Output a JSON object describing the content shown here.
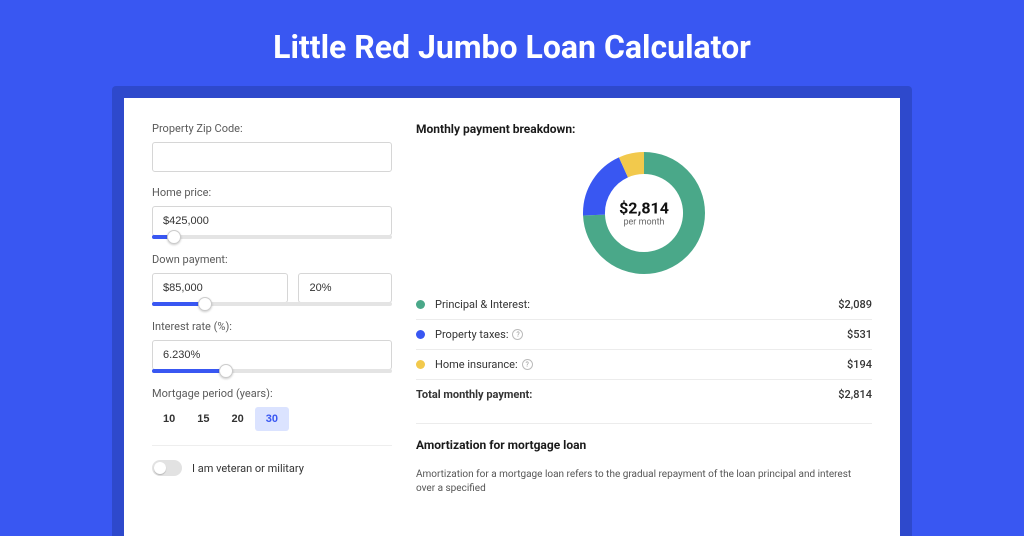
{
  "title": "Little Red Jumbo Loan Calculator",
  "form": {
    "zip": {
      "label": "Property Zip Code:",
      "value": ""
    },
    "price": {
      "label": "Home price:",
      "value": "$425,000",
      "slider_pct": 9
    },
    "down": {
      "label": "Down payment:",
      "value": "$85,000",
      "pct_value": "20%",
      "slider_pct": 22
    },
    "rate": {
      "label": "Interest rate (%):",
      "value": "6.230%",
      "slider_pct": 31
    },
    "period": {
      "label": "Mortgage period (years):",
      "options": [
        "10",
        "15",
        "20",
        "30"
      ],
      "active": "30"
    },
    "veteran": {
      "label": "I am veteran or military"
    }
  },
  "breakdown": {
    "title": "Monthly payment breakdown:",
    "monthly_amount": "$2,814",
    "monthly_sub": "per month",
    "chart": {
      "type": "donut",
      "size": 122,
      "inner_ratio": 0.64,
      "segments": [
        {
          "key": "pi",
          "value": 2089,
          "pct": 74.2,
          "color": "#4aa889"
        },
        {
          "key": "tax",
          "value": 531,
          "pct": 18.9,
          "color": "#3957f2"
        },
        {
          "key": "ins",
          "value": 194,
          "pct": 6.9,
          "color": "#f2c94c"
        }
      ],
      "background": "#ffffff"
    },
    "rows": [
      {
        "key": "pi",
        "label": "Principal & Interest:",
        "value": "$2,089",
        "color": "#4aa889",
        "info": false
      },
      {
        "key": "tax",
        "label": "Property taxes:",
        "value": "$531",
        "color": "#3957f2",
        "info": true
      },
      {
        "key": "ins",
        "label": "Home insurance:",
        "value": "$194",
        "color": "#f2c94c",
        "info": true
      }
    ],
    "total": {
      "label": "Total monthly payment:",
      "value": "$2,814"
    }
  },
  "amort": {
    "title": "Amortization for mortgage loan",
    "text": "Amortization for a mortgage loan refers to the gradual repayment of the loan principal and interest over a specified"
  }
}
